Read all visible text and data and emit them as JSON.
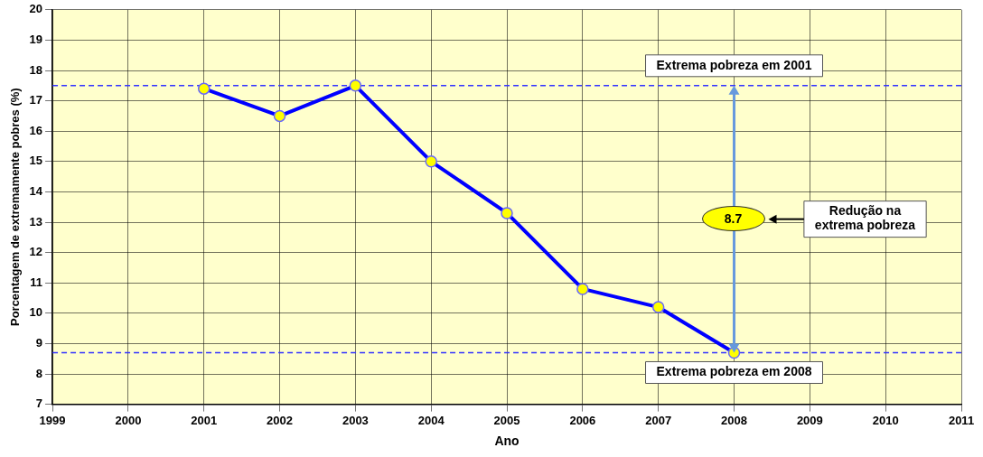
{
  "chart_data": {
    "type": "line",
    "xlabel": "Ano",
    "ylabel": "Porcentagem de extremamente pobres (%)",
    "x": [
      2001,
      2002,
      2003,
      2004,
      2005,
      2006,
      2007,
      2008
    ],
    "series": [
      {
        "color": "#0000ff",
        "values": [
          17.4,
          16.5,
          17.5,
          15.0,
          13.3,
          10.8,
          10.2,
          8.7
        ]
      }
    ],
    "xlim": [
      1999,
      2011
    ],
    "xticks": [
      1999,
      2000,
      2001,
      2002,
      2003,
      2004,
      2005,
      2006,
      2007,
      2008,
      2009,
      2010,
      2011
    ],
    "ylim": [
      7,
      20
    ],
    "yticks": [
      7,
      8,
      9,
      10,
      11,
      12,
      13,
      14,
      15,
      16,
      17,
      18,
      19,
      20
    ],
    "grid": true,
    "legend": false,
    "marker": "circle",
    "line_style": "solid",
    "ref_lines": [
      {
        "axis": "y",
        "value": 17.5,
        "label": "Extrema pobreza em 2001",
        "color": "#3333ff",
        "line_style": "dashed"
      },
      {
        "axis": "y",
        "value": 8.7,
        "label": "Extrema pobreza em 2008",
        "color": "#3333ff",
        "line_style": "dashed"
      }
    ],
    "annotations": [
      "8.7",
      "Redução na extrema pobreza"
    ]
  }
}
